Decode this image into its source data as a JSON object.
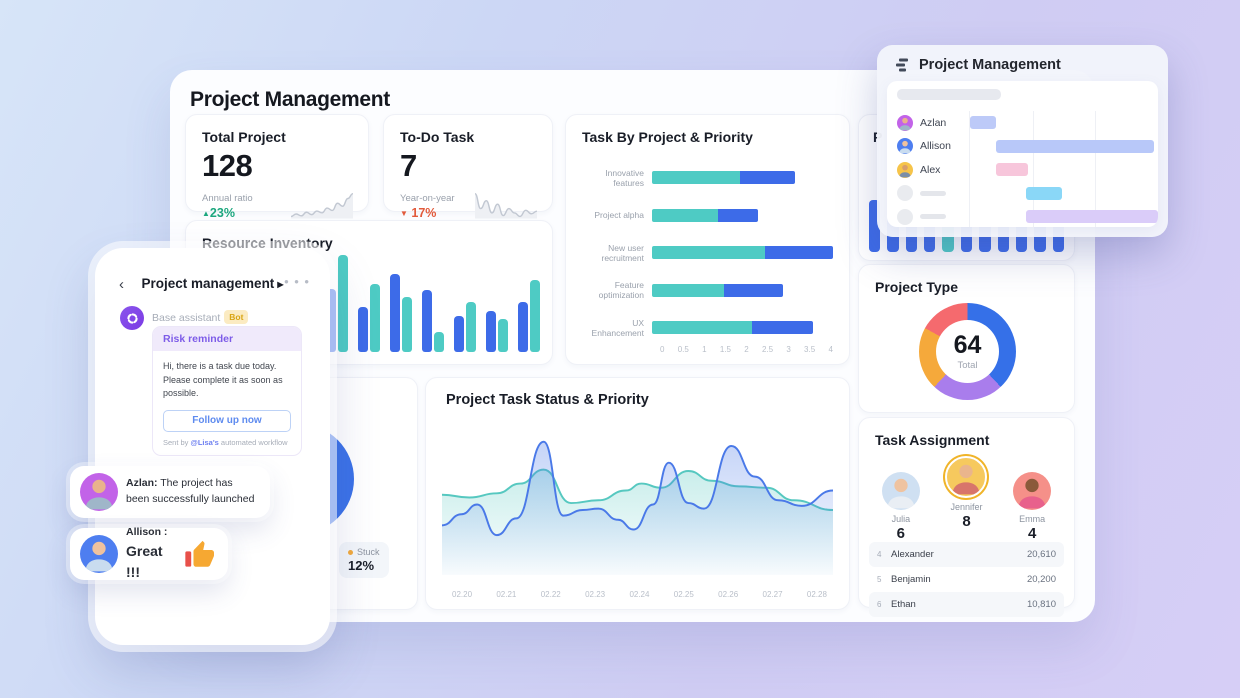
{
  "dashboard": {
    "title": "Project Management",
    "hidden_title": "P",
    "stats": [
      {
        "label": "Total Project",
        "value": "128",
        "sub": "Annual ratio",
        "delta": "23%",
        "arrow": "▲",
        "dir": "up"
      },
      {
        "label": "To-Do Task",
        "value": "7",
        "sub": "Year-on-year",
        "delta": "17%",
        "arrow": "▼",
        "dir": "down"
      }
    ],
    "task_assignment": {
      "title": "Task Assignment",
      "members": [
        {
          "name": "Julia",
          "count": "6",
          "avatar": "julia",
          "elevated": false
        },
        {
          "name": "Jennifer",
          "count": "8",
          "avatar": "jennifer",
          "elevated": true
        },
        {
          "name": "Emma",
          "count": "4",
          "avatar": "emma",
          "elevated": false
        }
      ],
      "rows": [
        {
          "rank": "4",
          "name": "Alexander",
          "value": "20,610"
        },
        {
          "rank": "5",
          "name": "Benjamin",
          "value": "20,200"
        },
        {
          "rank": "6",
          "name": "Ethan",
          "value": "10,810"
        }
      ]
    }
  },
  "popup": {
    "title": "Project Management"
  },
  "chat": {
    "title": "Project management",
    "caret": "▶",
    "back": "‹",
    "menu": "• • •",
    "assistant_name": "Base assistant",
    "bot_badge": "Bot",
    "reminder_title": "Risk reminder",
    "reminder_line1": "Hi, there is a task due today.",
    "reminder_line2": "Please complete it as soon as possible.",
    "button_label": "Follow up now",
    "footer_prefix": "Sent by ",
    "footer_mention": "@Lisa's",
    "footer_suffix": " automated workflow"
  },
  "bubbles": [
    {
      "name": "Azlan:",
      "text": " The project has been successfully launched",
      "avatar": "azlan"
    },
    {
      "name": "Allison :",
      "text": "Great !!!",
      "avatar": "allison"
    }
  ],
  "avatars": {
    "azlan": {
      "bg": "#c263e8",
      "skin": "#e9b28c",
      "shirt": "#9fb6c9"
    },
    "allison": {
      "bg": "#4e7ef0",
      "skin": "#f0c29e",
      "shirt": "#c9dcef"
    },
    "alex": {
      "bg": "#f6c44a",
      "skin": "#d99e6b",
      "shirt": "#7a8ea8"
    },
    "julia": {
      "bg": "#cfe0f2",
      "skin": "#efc3a0",
      "shirt": "#e9eef4"
    },
    "jennifer": {
      "bg": "#f6c95e",
      "skin": "#eab58c",
      "shirt": "#d8756b",
      "ring": "#f0b429"
    },
    "emma": {
      "bg": "#f59089",
      "skin": "#8a5a3b",
      "shirt": "#e8618c"
    }
  },
  "chart_data": [
    {
      "id": "spark-total",
      "type": "line",
      "color": "#c2c8d2",
      "values": [
        3.2,
        3.6,
        3.3,
        3.9,
        3.5,
        4.1,
        3.8,
        4.6,
        4.2,
        5.4,
        4.9,
        6.2,
        7.0
      ]
    },
    {
      "id": "spark-todo",
      "type": "line",
      "color": "#c2c8d2",
      "values": [
        5.6,
        3.9,
        4.8,
        3.4,
        4.4,
        3.1,
        3.9,
        3.4,
        3.0,
        3.7,
        3.3,
        3.6
      ]
    },
    {
      "id": "task-by-project",
      "type": "bar",
      "orientation": "horizontal-stacked",
      "title": "Task By Project & Priority",
      "categories": [
        "Innovative features",
        "Project alpha",
        "New user recruitment",
        "Feature optimization",
        "UX Enhancement"
      ],
      "series": [
        {
          "name": "teal",
          "color": "#4ecbc4",
          "values": [
            1.95,
            1.45,
            2.5,
            1.6,
            2.2
          ]
        },
        {
          "name": "blue",
          "color": "#3d6be8",
          "values": [
            1.2,
            0.9,
            1.5,
            1.3,
            1.35
          ]
        }
      ],
      "xticks": [
        "0",
        "0.5",
        "1",
        "1.5",
        "2",
        "2.5",
        "3",
        "3.5",
        "4"
      ],
      "xlim": [
        0,
        4
      ]
    },
    {
      "id": "resource-inventory",
      "type": "bar",
      "orientation": "vertical-grouped",
      "title": "Resource Inventory",
      "ylim": [
        0,
        1
      ],
      "series": [
        {
          "name": "blue",
          "color": "#3d6be8",
          "values": [
            0.45,
            0.6,
            0.35,
            0.28,
            0.63,
            0.45,
            0.78,
            0.62,
            0.36,
            0.41,
            0.5
          ]
        },
        {
          "name": "teal",
          "color": "#4ecbc4",
          "values": [
            0.65,
            0.4,
            0.55,
            0.45,
            0.97,
            0.68,
            0.55,
            0.2,
            0.5,
            0.33,
            0.72
          ]
        }
      ]
    },
    {
      "id": "status-priority",
      "type": "area",
      "title": "Project Task Status & Priority",
      "ylim": [
        0,
        100
      ],
      "xticks": [
        "02.20",
        "02.21",
        "02.22",
        "02.23",
        "02.24",
        "02.25",
        "02.26",
        "02.27",
        "02.28"
      ],
      "series": [
        {
          "name": "teal",
          "color": "#56c8c0",
          "points": [
            [
              0,
              52
            ],
            [
              7,
              50
            ],
            [
              14,
              53
            ],
            [
              20,
              60
            ],
            [
              26,
              70
            ],
            [
              33,
              46
            ],
            [
              40,
              48
            ],
            [
              47,
              55
            ],
            [
              51,
              60
            ],
            [
              56,
              57
            ],
            [
              63,
              69
            ],
            [
              69,
              62
            ],
            [
              76,
              58
            ],
            [
              83,
              57
            ],
            [
              90,
              48
            ],
            [
              100,
              41
            ]
          ]
        },
        {
          "name": "blue",
          "color": "#4a79e8",
          "points": [
            [
              0,
              30
            ],
            [
              5,
              38
            ],
            [
              9,
              45
            ],
            [
              14,
              23
            ],
            [
              19,
              35
            ],
            [
              26,
              90
            ],
            [
              31,
              37
            ],
            [
              36,
              41
            ],
            [
              40,
              42
            ],
            [
              45,
              34
            ],
            [
              49,
              27
            ],
            [
              54,
              45
            ],
            [
              58,
              75
            ],
            [
              63,
              46
            ],
            [
              67,
              42
            ],
            [
              74,
              87
            ],
            [
              80,
              65
            ],
            [
              86,
              48
            ],
            [
              92,
              44
            ],
            [
              100,
              55
            ]
          ]
        }
      ]
    },
    {
      "id": "project-type",
      "type": "pie",
      "title": "Project Type",
      "center_value": "64",
      "center_label": "Total",
      "slices": [
        {
          "name": "blue",
          "value": 38,
          "color": "#3570e8"
        },
        {
          "name": "purple",
          "value": 24,
          "color": "#a97dec"
        },
        {
          "name": "orange",
          "value": 21,
          "color": "#f5a93b"
        },
        {
          "name": "red",
          "value": 17,
          "color": "#f56a6e"
        }
      ]
    },
    {
      "id": "mini-columns",
      "type": "bar",
      "orientation": "vertical",
      "color": "#3d6be8",
      "highlight_color": "#4ecbc4",
      "highlight_index": 4,
      "values": [
        1.0,
        0.72,
        0.72,
        0.72,
        0.72,
        0.72,
        0.72,
        0.72,
        0.72,
        0.72,
        0.8
      ]
    },
    {
      "id": "gantt",
      "type": "gantt",
      "rows": [
        {
          "name": "Azlan",
          "avatar": "azlan",
          "bar": {
            "start": 0,
            "width": 14,
            "color": "#bdcaf8"
          }
        },
        {
          "name": "Allison",
          "avatar": "allison",
          "bar": {
            "start": 14,
            "width": 84,
            "color": "#b8c8f9"
          }
        },
        {
          "name": "Alex",
          "avatar": "alex",
          "bar": {
            "start": 14,
            "width": 17,
            "color": "#f7c6db"
          }
        },
        {
          "name": "",
          "avatar": "",
          "bar": {
            "start": 30,
            "width": 19,
            "color": "#8ad7f7"
          }
        },
        {
          "name": "",
          "avatar": "",
          "bar": {
            "start": 30,
            "width": 70,
            "color": "#daccf9"
          }
        }
      ]
    },
    {
      "id": "stuck-pie",
      "type": "pie",
      "label": "Stuck",
      "label_value": "12%",
      "slices": [
        {
          "name": "main",
          "value": 88,
          "color": "#3b72e8"
        },
        {
          "name": "Stuck",
          "value": 12,
          "color": "#f2a93b"
        }
      ]
    }
  ]
}
